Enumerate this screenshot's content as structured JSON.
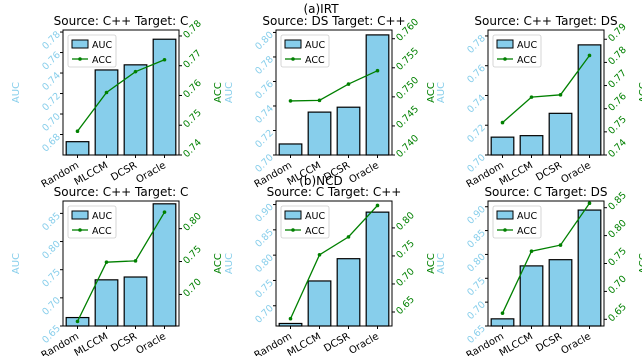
{
  "section_labels": [
    "(a)IRT",
    "(b)NCD"
  ],
  "colors": {
    "bar_fill": "#87ceeb",
    "bar_edge": "#000000",
    "auc_axis": "#87ceeb",
    "acc_axis": "#008000",
    "line": "#008000"
  },
  "chart_data": [
    {
      "type": "bar",
      "title": "Source: C++  Target: C",
      "categories": [
        "Random",
        "MLCCM",
        "DCSR",
        "Oracle"
      ],
      "ylabel": "AUC",
      "ylabel2": "ACC",
      "series": [
        {
          "name": "AUC",
          "values": [
            0.673,
            0.743,
            0.748,
            0.773
          ]
        },
        {
          "name": "ACC",
          "values": [
            0.748,
            0.761,
            0.768,
            0.772
          ]
        }
      ],
      "ylim": [
        0.66,
        0.782
      ],
      "y_ticks": [
        0.68,
        0.7,
        0.72,
        0.74,
        0.76,
        0.78
      ],
      "y2lim": [
        0.74,
        0.782
      ],
      "y2_ticks": [
        0.74,
        0.75,
        0.76,
        0.77,
        0.78
      ],
      "y2_decimals": 2,
      "legend": "top-left"
    },
    {
      "type": "bar",
      "title": "Source: DS  Target: C++",
      "categories": [
        "Random",
        "MLCCM",
        "DCSR",
        "Oracle"
      ],
      "ylabel": "AUC",
      "ylabel2": "ACC",
      "series": [
        {
          "name": "AUC",
          "values": [
            0.709,
            0.735,
            0.739,
            0.798
          ]
        },
        {
          "name": "ACC",
          "values": [
            0.7493,
            0.7494,
            0.7522,
            0.7545
          ]
        }
      ],
      "ylim": [
        0.7,
        0.802
      ],
      "y_ticks": [
        0.7,
        0.72,
        0.74,
        0.76,
        0.78,
        0.8
      ],
      "y2lim": [
        0.74,
        0.7615
      ],
      "y2_ticks": [
        0.74,
        0.745,
        0.75,
        0.755,
        0.76
      ],
      "y2_decimals": 3,
      "legend": "top-left"
    },
    {
      "type": "bar",
      "title": "Source: C++  Target: DS",
      "categories": [
        "Random",
        "MLCCM",
        "DCSR",
        "Oracle"
      ],
      "ylabel": "AUC",
      "ylabel2": "ACC",
      "series": [
        {
          "name": "AUC",
          "values": [
            0.712,
            0.713,
            0.728,
            0.774
          ]
        },
        {
          "name": "ACC",
          "values": [
            0.754,
            0.765,
            0.766,
            0.783
          ]
        }
      ],
      "ylim": [
        0.7,
        0.784
      ],
      "y_ticks": [
        0.7,
        0.72,
        0.74,
        0.76,
        0.78
      ],
      "y2lim": [
        0.74,
        0.794
      ],
      "y2_ticks": [
        0.74,
        0.75,
        0.76,
        0.77,
        0.78,
        0.79
      ],
      "y2_decimals": 2,
      "legend": "top-left"
    },
    {
      "type": "bar",
      "title": "Source: C++  Target: C",
      "categories": [
        "Random",
        "MLCCM",
        "DCSR",
        "Oracle"
      ],
      "ylabel": "AUC",
      "ylabel2": "ACC",
      "series": [
        {
          "name": "AUC",
          "values": [
            0.665,
            0.732,
            0.737,
            0.867
          ]
        },
        {
          "name": "ACC",
          "values": [
            0.659,
            0.749,
            0.751,
            0.825
          ]
        }
      ],
      "ylim": [
        0.65,
        0.872
      ],
      "y_ticks": [
        0.65,
        0.7,
        0.75,
        0.8,
        0.85
      ],
      "y2lim": [
        0.652,
        0.842
      ],
      "y2_ticks": [
        0.7,
        0.75,
        0.8
      ],
      "y2_decimals": 2,
      "legend": "top-left"
    },
    {
      "type": "bar",
      "title": "Source: C  Target: C++",
      "categories": [
        "Random",
        "MLCCM",
        "DCSR",
        "Oracle"
      ],
      "ylabel": "AUC",
      "ylabel2": "ACC",
      "series": [
        {
          "name": "AUC",
          "values": [
            0.665,
            0.749,
            0.793,
            0.885
          ]
        },
        {
          "name": "ACC",
          "values": [
            0.638,
            0.752,
            0.784,
            0.84
          ]
        }
      ],
      "ylim": [
        0.66,
        0.907
      ],
      "y_ticks": [
        0.7,
        0.75,
        0.8,
        0.85,
        0.9
      ],
      "y2lim": [
        0.625,
        0.848
      ],
      "y2_ticks": [
        0.65,
        0.7,
        0.75,
        0.8
      ],
      "y2_decimals": 2,
      "legend": "top-left"
    },
    {
      "type": "bar",
      "title": "Source: C  Target: DS",
      "categories": [
        "Random",
        "MLCCM",
        "DCSR",
        "Oracle"
      ],
      "ylabel": "AUC",
      "ylabel2": "ACC",
      "series": [
        {
          "name": "AUC",
          "values": [
            0.665,
            0.776,
            0.789,
            0.893
          ]
        },
        {
          "name": "ACC",
          "values": [
            0.661,
            0.772,
            0.783,
            0.858
          ]
        }
      ],
      "ylim": [
        0.65,
        0.912
      ],
      "y_ticks": [
        0.65,
        0.7,
        0.75,
        0.8,
        0.85,
        0.9
      ],
      "y2lim": [
        0.638,
        0.862
      ],
      "y2_ticks": [
        0.65,
        0.7,
        0.75,
        0.8,
        0.85
      ],
      "y2_decimals": 2,
      "legend": "top-left"
    }
  ]
}
